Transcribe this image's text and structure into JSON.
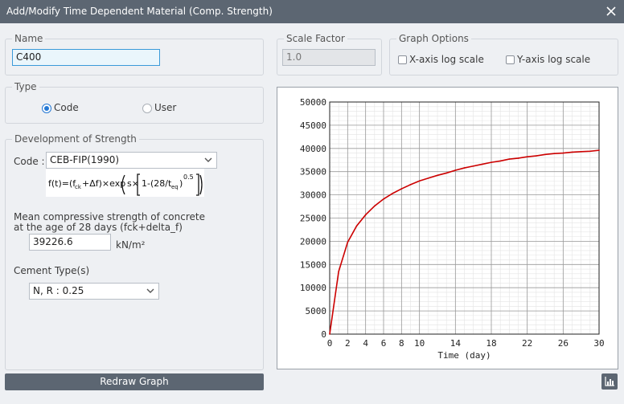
{
  "window": {
    "title": "Add/Modify Time Dependent Material (Comp. Strength)"
  },
  "name_group": {
    "label": "Name",
    "value": "C400"
  },
  "scale_group": {
    "label": "Scale Factor",
    "value": "1.0"
  },
  "graph_options": {
    "label": "Graph Options",
    "x_log_label": "X-axis log scale",
    "y_log_label": "Y-axis log scale",
    "x_log_checked": false,
    "y_log_checked": false
  },
  "type_group": {
    "label": "Type",
    "code_label": "Code",
    "user_label": "User",
    "selected": "Code"
  },
  "development": {
    "label": "Development of Strength",
    "code_label": "Code :",
    "code_value": "CEB-FIP(1990)",
    "mean_label_1": "Mean compressive strength of concrete",
    "mean_label_2": "at the age of 28 days (fck+delta_f)",
    "mean_value": "39226.6",
    "unit": "kN/m²",
    "cement_label": "Cement Type(s)",
    "cement_value": "N, R : 0.25"
  },
  "buttons": {
    "redraw": "Redraw Graph"
  },
  "icons": {
    "close": "close-icon",
    "dropdown": "chevron-down-icon",
    "chart": "bar-chart-icon"
  },
  "colors": {
    "titlebar": "#5c6672",
    "curve": "#cc0000",
    "accent": "#2478d4"
  },
  "chart_data": {
    "type": "line",
    "title": "",
    "xlabel": "Time (day)",
    "ylabel": "",
    "xlim": [
      0,
      30
    ],
    "ylim": [
      0,
      50000
    ],
    "x_ticks": [
      0,
      2,
      4,
      6,
      8,
      10,
      14,
      18,
      22,
      26,
      30
    ],
    "y_ticks": [
      0,
      5000,
      10000,
      15000,
      20000,
      25000,
      30000,
      35000,
      40000,
      45000,
      50000
    ],
    "grid": true,
    "series": [
      {
        "x": [
          0,
          1,
          2,
          3,
          4,
          5,
          6,
          7,
          8,
          9,
          10,
          11,
          12,
          13,
          14,
          15,
          16,
          17,
          18,
          19,
          20,
          21,
          22,
          23,
          24,
          25,
          26,
          27,
          28,
          29,
          30
        ],
        "y": [
          0,
          13500,
          19800,
          23300,
          25700,
          27600,
          29100,
          30300,
          31300,
          32200,
          33000,
          33600,
          34200,
          34700,
          35300,
          35800,
          36200,
          36600,
          37000,
          37300,
          37700,
          37900,
          38200,
          38400,
          38700,
          38900,
          39000,
          39200,
          39300,
          39400,
          39600
        ]
      }
    ]
  }
}
